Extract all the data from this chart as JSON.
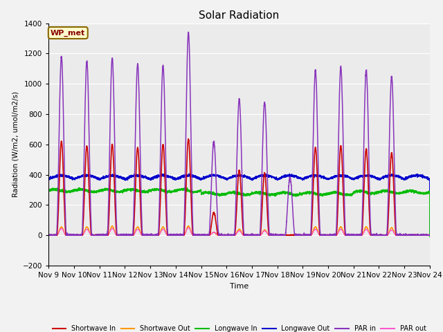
{
  "title": "Solar Radiation",
  "ylabel": "Radiation (W/m2, umol/m2/s)",
  "xlabel": "Time",
  "ylim": [
    -200,
    1400
  ],
  "background_color": "#f2f2f2",
  "plot_bg_color": "#ebebeb",
  "grid_color": "#ffffff",
  "annotation_text": "WP_met",
  "annotation_box_color": "#ffffcc",
  "annotation_border_color": "#886600",
  "xtick_labels": [
    "Nov 9",
    "Nov 10",
    "Nov 11",
    "Nov 12",
    "Nov 13",
    "Nov 14",
    "Nov 15",
    "Nov 16",
    "Nov 17",
    "Nov 18",
    "Nov 19",
    "Nov 20",
    "Nov 21",
    "Nov 22",
    "Nov 23",
    "Nov 24"
  ],
  "colors": {
    "sw_in": "#cc0000",
    "sw_out": "#ff9900",
    "lw_in": "#00bb00",
    "lw_out": "#0000cc",
    "par_in": "#8833bb",
    "par_out": "#ff55cc"
  },
  "num_days": 15,
  "n_per_day": 288,
  "seed": 42,
  "par_in_peaks": [
    1180,
    1150,
    1170,
    1130,
    1120,
    1340,
    620,
    900,
    880,
    380,
    1090,
    1110,
    1090,
    1050,
    0
  ],
  "sw_in_peaks": [
    620,
    590,
    600,
    580,
    600,
    635,
    150,
    430,
    410,
    0,
    580,
    590,
    570,
    545,
    0
  ],
  "sw_out_peaks": [
    55,
    55,
    60,
    55,
    55,
    60,
    20,
    40,
    35,
    0,
    55,
    55,
    55,
    50,
    0
  ],
  "par_out_peaks": [
    45,
    40,
    45,
    40,
    40,
    50,
    20,
    30,
    30,
    0,
    40,
    40,
    40,
    35,
    0
  ],
  "lw_in_base": 295,
  "lw_out_base": 370
}
